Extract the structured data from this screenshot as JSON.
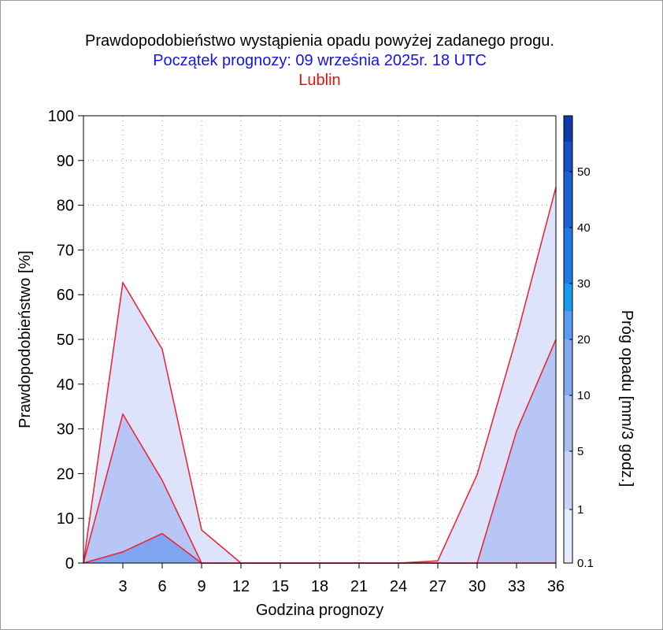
{
  "chart_data": {
    "type": "area",
    "title": "Prawdopodobieństwo wystąpienia opadu powyżej zadanego progu.",
    "subtitle": "Początek prognozy: 09 września 2025r. 18 UTC",
    "location": "Lublin",
    "xlabel": "Godzina prognozy",
    "ylabel": "Prawdopodobieństwo [%]",
    "x": [
      0,
      3,
      6,
      9,
      12,
      15,
      18,
      21,
      24,
      27,
      30,
      33,
      36
    ],
    "xticks": [
      "3",
      "6",
      "9",
      "12",
      "15",
      "18",
      "21",
      "24",
      "27",
      "30",
      "33",
      "36"
    ],
    "xlim": [
      0,
      36
    ],
    "ylim": [
      0,
      100
    ],
    "yticks": [
      "0",
      "10",
      "20",
      "30",
      "40",
      "50",
      "60",
      "70",
      "80",
      "90",
      "100"
    ],
    "grid": true,
    "series": [
      {
        "name": "0.1",
        "color": "#dde3fb",
        "values": [
          0,
          62.7,
          47.8,
          7.4,
          0,
          0,
          0,
          0,
          0,
          0.5,
          19.8,
          50.5,
          84
        ]
      },
      {
        "name": "1",
        "color": "#b7c6f5",
        "values": [
          0,
          33.3,
          18.5,
          0,
          0,
          0,
          0,
          0,
          0,
          0,
          0,
          29.5,
          50
        ]
      },
      {
        "name": "5",
        "color": "#7fa4f0",
        "values": [
          0,
          2.5,
          6.6,
          0,
          0,
          0,
          0,
          0,
          0,
          0,
          0,
          0,
          0
        ]
      }
    ],
    "line_color": "#e8283c",
    "colorbar": {
      "label": "Próg opadu [mm/3 godz.]",
      "tick_labels": [
        "0.1",
        "1",
        "5",
        "10",
        "20",
        "30",
        "40",
        "50"
      ],
      "colors": [
        "#e6ebfd",
        "#c9d5f8",
        "#a9bff3",
        "#83a8ef",
        "#5a9cf0",
        "#1a9bf0",
        "#1f7ae6",
        "#1c62d6",
        "#154fc2",
        "#0f3ba8"
      ]
    }
  }
}
